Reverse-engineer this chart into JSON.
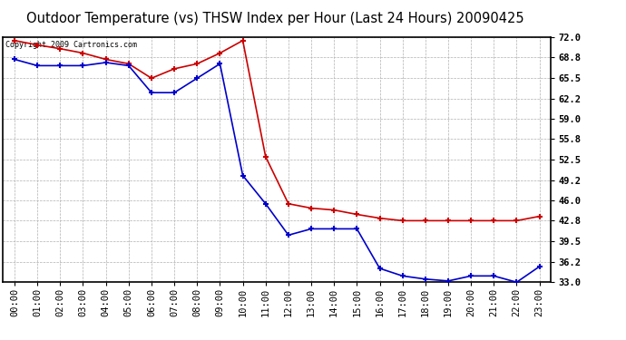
{
  "title": "Outdoor Temperature (vs) THSW Index per Hour (Last 24 Hours) 20090425",
  "copyright_text": "Copyright 2009 Cartronics.com",
  "hours": [
    0,
    1,
    2,
    3,
    4,
    5,
    6,
    7,
    8,
    9,
    10,
    11,
    12,
    13,
    14,
    15,
    16,
    17,
    18,
    19,
    20,
    21,
    22,
    23
  ],
  "hour_labels": [
    "00:00",
    "01:00",
    "02:00",
    "03:00",
    "04:00",
    "05:00",
    "06:00",
    "07:00",
    "08:00",
    "09:00",
    "10:00",
    "11:00",
    "12:00",
    "13:00",
    "14:00",
    "15:00",
    "16:00",
    "17:00",
    "18:00",
    "19:00",
    "20:00",
    "21:00",
    "22:00",
    "23:00"
  ],
  "temp_red": [
    71.5,
    70.8,
    70.2,
    69.5,
    68.5,
    67.8,
    65.5,
    67.0,
    67.8,
    69.5,
    71.5,
    53.0,
    45.5,
    44.8,
    44.5,
    43.8,
    43.2,
    42.8,
    42.8,
    42.8,
    42.8,
    42.8,
    42.8,
    43.5
  ],
  "temp_blue": [
    68.5,
    67.5,
    67.5,
    67.5,
    68.0,
    67.5,
    63.2,
    63.2,
    65.5,
    67.8,
    50.0,
    45.5,
    40.5,
    41.5,
    41.5,
    41.5,
    35.2,
    34.0,
    33.5,
    33.2,
    34.0,
    34.0,
    33.0,
    35.5
  ],
  "ylim_min": 33.0,
  "ylim_max": 72.0,
  "yticks": [
    33.0,
    36.2,
    39.5,
    42.8,
    46.0,
    49.2,
    52.5,
    55.8,
    59.0,
    62.2,
    65.5,
    68.8,
    72.0
  ],
  "ytick_labels": [
    "33.0",
    "36.2",
    "39.5",
    "42.8",
    "46.0",
    "49.2",
    "52.5",
    "55.8",
    "59.0",
    "62.2",
    "65.5",
    "68.8",
    "72.0"
  ],
  "red_color": "#cc0000",
  "blue_color": "#0000cc",
  "bg_color": "#ffffff",
  "grid_color": "#b0b0b0",
  "title_fontsize": 10.5,
  "copy_fontsize": 6,
  "tick_fontsize": 7.5
}
